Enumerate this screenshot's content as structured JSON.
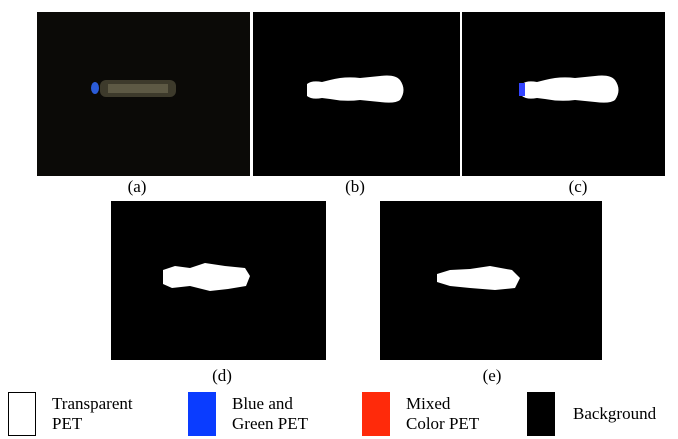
{
  "figure": {
    "panels": [
      {
        "caption": "(a)"
      },
      {
        "caption": "(b)"
      },
      {
        "caption": "(c)"
      },
      {
        "caption": "(d)"
      },
      {
        "caption": "(e)"
      }
    ],
    "legend": [
      {
        "lines": [
          "Transparent",
          "PET"
        ],
        "color": "#ffffff"
      },
      {
        "lines": [
          "Blue and",
          "Green PET"
        ],
        "color": "#0a3cff"
      },
      {
        "lines": [
          "Mixed",
          "Color PET"
        ],
        "color": "#ff2a0a"
      },
      {
        "lines": [
          "Background"
        ],
        "color": "#000000"
      }
    ]
  }
}
